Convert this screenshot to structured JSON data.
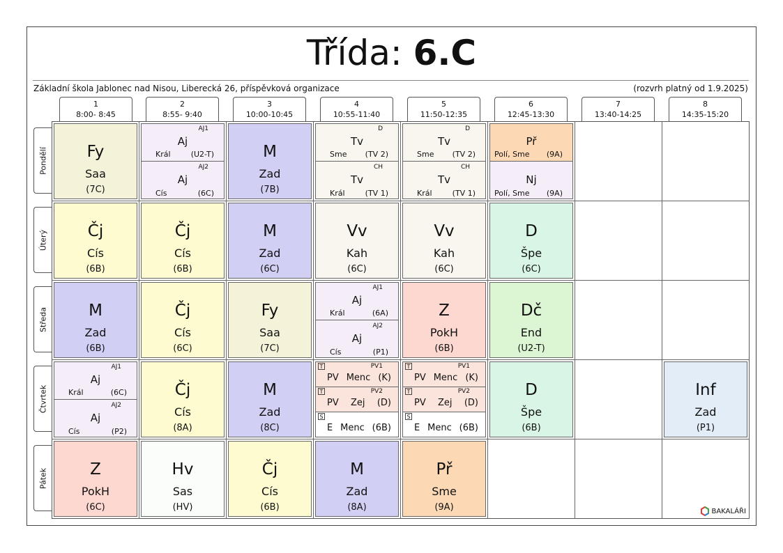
{
  "title": {
    "prefix": "Třída:",
    "class_name": "6.C"
  },
  "school": "Základní škola Jablonec nad Nisou, Liberecká 26, příspěvková organizace",
  "valid_from": "(rozvrh platný od 1.9.2025)",
  "periods": [
    {
      "num": "1",
      "time": "8:00- 8:45"
    },
    {
      "num": "2",
      "time": "8:55- 9:40"
    },
    {
      "num": "3",
      "time": "10:00-10:45"
    },
    {
      "num": "4",
      "time": "10:55-11:40"
    },
    {
      "num": "5",
      "time": "11:50-12:35"
    },
    {
      "num": "6",
      "time": "12:45-13:30"
    },
    {
      "num": "7",
      "time": "13:40-14:25"
    },
    {
      "num": "8",
      "time": "14:35-15:20"
    }
  ],
  "days": [
    "Pondělí",
    "Úterý",
    "Středa",
    "Čtvrtek",
    "Pátek"
  ],
  "logo_text": "BAKALÁŘI",
  "colors": {
    "physics": "#f4f2d8",
    "math": "#d2cff4",
    "czech": "#fdfbcf",
    "pe_vv": "#f8f6ee",
    "split": "#f5eef9",
    "chem": "#fcd9b4",
    "history": "#d9f5e6",
    "geo": "#fdd8d1",
    "music": "#fbfdfb",
    "inf": "#e3edf8",
    "drama": "#dcf5d3",
    "pv": "#fbe4dc"
  },
  "lessons": {
    "mon": [
      {
        "subj": "Fy",
        "teach": "Saa",
        "room": "(7C)"
      },
      {
        "top": {
          "grp": "AJ1",
          "subj": "Aj",
          "teach": "Král",
          "room": "(U2-T)"
        },
        "bot": {
          "grp": "AJ2",
          "subj": "Aj",
          "teach": "Cís",
          "room": "(6C)"
        }
      },
      {
        "subj": "M",
        "teach": "Zad",
        "room": "(7B)"
      },
      {
        "top": {
          "grp": "D",
          "subj": "Tv",
          "teach": "Sme",
          "room": "(TV 2)"
        },
        "bot": {
          "grp": "CH",
          "subj": "Tv",
          "teach": "Král",
          "room": "(TV 1)"
        }
      },
      {
        "top": {
          "grp": "D",
          "subj": "Tv",
          "teach": "Sme",
          "room": "(TV 2)"
        },
        "bot": {
          "grp": "CH",
          "subj": "Tv",
          "teach": "Král",
          "room": "(TV 1)"
        }
      },
      {
        "top": {
          "subj": "Př",
          "teach": "Polí, Sme",
          "room": "(9A)"
        },
        "bot": {
          "subj": "Nj",
          "teach": "Polí, Sme",
          "room": "(9A)"
        }
      }
    ],
    "tue": [
      {
        "subj": "Čj",
        "teach": "Cís",
        "room": "(6B)"
      },
      {
        "subj": "Čj",
        "teach": "Cís",
        "room": "(6B)"
      },
      {
        "subj": "M",
        "teach": "Zad",
        "room": "(6C)"
      },
      {
        "subj": "Vv",
        "teach": "Kah",
        "room": "(6C)"
      },
      {
        "subj": "Vv",
        "teach": "Kah",
        "room": "(6C)"
      },
      {
        "subj": "D",
        "teach": "Špe",
        "room": "(6C)"
      }
    ],
    "wed": [
      {
        "subj": "M",
        "teach": "Zad",
        "room": "(6B)"
      },
      {
        "subj": "Čj",
        "teach": "Cís",
        "room": "(6C)"
      },
      {
        "subj": "Fy",
        "teach": "Saa",
        "room": "(7C)"
      },
      {
        "top": {
          "grp": "AJ1",
          "subj": "Aj",
          "teach": "Král",
          "room": "(6A)"
        },
        "bot": {
          "grp": "AJ2",
          "subj": "Aj",
          "teach": "Cís",
          "room": "(P1)"
        }
      },
      {
        "subj": "Z",
        "teach": "PokH",
        "room": "(6B)"
      },
      {
        "subj": "Dč",
        "teach": "End",
        "room": "(U2-T)"
      }
    ],
    "thu": [
      {
        "top": {
          "grp": "AJ1",
          "subj": "Aj",
          "teach": "Král",
          "room": "(6C)"
        },
        "bot": {
          "grp": "AJ2",
          "subj": "Aj",
          "teach": "Cís",
          "room": "(P2)"
        }
      },
      {
        "subj": "Čj",
        "teach": "Cís",
        "room": "(8A)"
      },
      {
        "subj": "M",
        "teach": "Zad",
        "room": "(8C)"
      },
      {
        "rows": [
          {
            "tag": "T",
            "grp": "PV1",
            "subj": "PV",
            "teach": "Menc",
            "room": "(K)"
          },
          {
            "tag": "T",
            "grp": "PV2",
            "subj": "PV",
            "teach": "Zej",
            "room": "(D)"
          },
          {
            "tag": "S",
            "grp": "",
            "subj": "E",
            "teach": "Menc",
            "room": "(6B)"
          }
        ]
      },
      {
        "rows": [
          {
            "tag": "T",
            "grp": "PV1",
            "subj": "PV",
            "teach": "Menc",
            "room": "(K)"
          },
          {
            "tag": "T",
            "grp": "PV2",
            "subj": "PV",
            "teach": "Zej",
            "room": "(D)"
          },
          {
            "tag": "S",
            "grp": "",
            "subj": "E",
            "teach": "Menc",
            "room": "(6B)"
          }
        ]
      },
      {
        "subj": "D",
        "teach": "Špe",
        "room": "(6B)"
      },
      {
        "subj": "Inf",
        "teach": "Zad",
        "room": "(P1)"
      }
    ],
    "fri": [
      {
        "subj": "Z",
        "teach": "PokH",
        "room": "(6C)"
      },
      {
        "subj": "Hv",
        "teach": "Sas",
        "room": "(HV)"
      },
      {
        "subj": "Čj",
        "teach": "Cís",
        "room": "(6B)"
      },
      {
        "subj": "M",
        "teach": "Zad",
        "room": "(8A)"
      },
      {
        "subj": "Př",
        "teach": "Sme",
        "room": "(9A)"
      }
    ]
  }
}
